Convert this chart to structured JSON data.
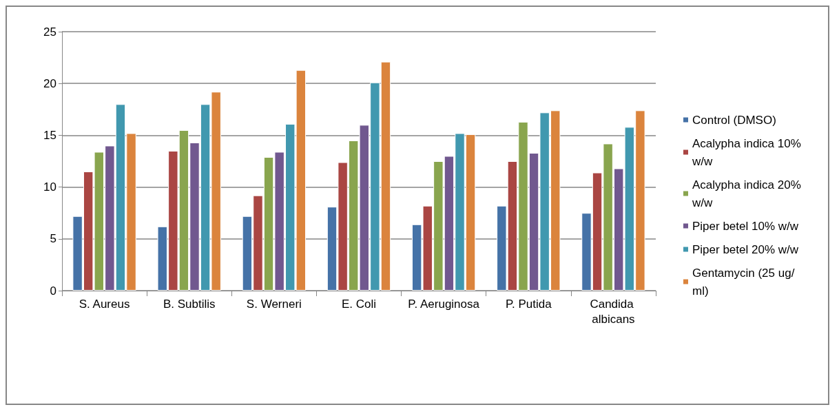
{
  "chart_data": {
    "type": "bar",
    "categories": [
      "S. Aureus",
      "B. Subtilis",
      "S. Werneri",
      "E. Coli",
      "P. Aeruginosa",
      "P. Putida",
      "Candida albicans"
    ],
    "series": [
      {
        "name": "Control (DMSO)",
        "color": "#4572a7",
        "values": [
          7.2,
          6.2,
          7.2,
          8.1,
          6.4,
          8.2,
          7.5
        ]
      },
      {
        "name": "Acalypha indica 10% w/w",
        "color": "#aa4643",
        "values": [
          11.5,
          13.5,
          9.2,
          12.4,
          8.2,
          12.5,
          11.4
        ]
      },
      {
        "name": "Acalypha indica 20% w/w",
        "color": "#89a54e",
        "values": [
          13.4,
          15.5,
          12.9,
          14.5,
          12.5,
          16.3,
          14.2
        ]
      },
      {
        "name": "Piper betel 10% w/w",
        "color": "#71588f",
        "values": [
          14.0,
          14.3,
          13.4,
          16.0,
          13.0,
          13.3,
          11.8
        ]
      },
      {
        "name": "Piper betel 20% w/w",
        "color": "#4198af",
        "values": [
          18.0,
          18.0,
          16.1,
          20.1,
          15.2,
          17.2,
          15.8
        ]
      },
      {
        "name": "Gentamycin (25 ug/ml)",
        "color": "#db843d",
        "values": [
          15.2,
          19.2,
          21.3,
          22.1,
          15.1,
          17.4,
          17.4
        ]
      }
    ],
    "ylim": [
      0,
      25
    ],
    "yticks": [
      0,
      5,
      10,
      15,
      20,
      25
    ],
    "grid": "y",
    "legend": "right"
  }
}
